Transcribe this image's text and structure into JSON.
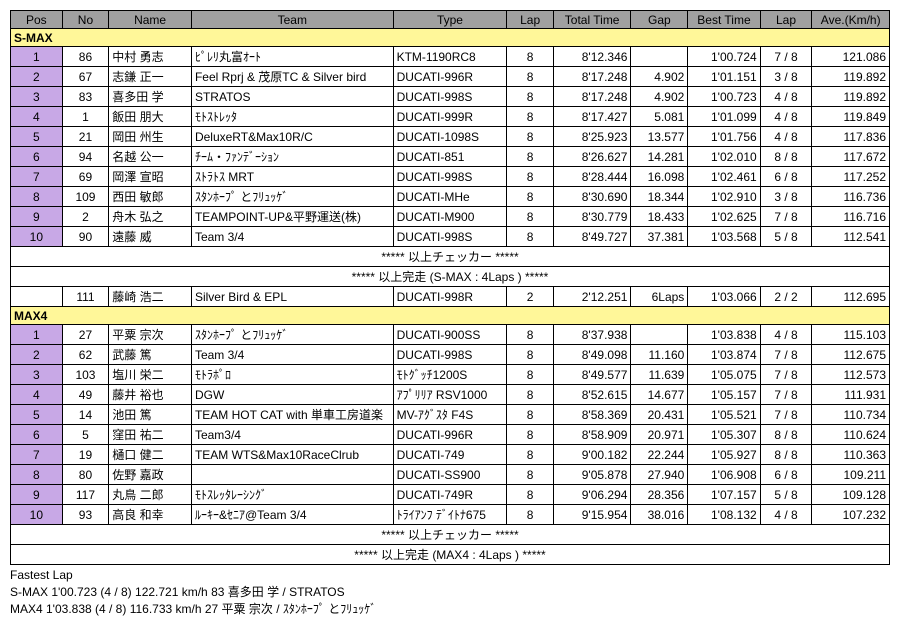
{
  "headers": [
    "Pos",
    "No",
    "Name",
    "Team",
    "Type",
    "Lap",
    "Total Time",
    "Gap",
    "Best Time",
    "Lap",
    "Ave.(Km/h)"
  ],
  "class1": {
    "label": "S-MAX",
    "rows": [
      {
        "pos": "1",
        "no": "86",
        "name": "中村 勇志",
        "team": "ﾋﾟﾚﾘ丸富ｵｰﾄ",
        "type": "KTM-1190RC8",
        "lap": "8",
        "tt": "8'12.346",
        "gap": "",
        "bt": "1'00.724",
        "blap": "7 / 8",
        "ave": "121.086"
      },
      {
        "pos": "2",
        "no": "67",
        "name": "志鎌 正一",
        "team": "Feel Rprj & 茂原TC & Silver bird",
        "type": "DUCATI-996R",
        "lap": "8",
        "tt": "8'17.248",
        "gap": "4.902",
        "bt": "1'01.151",
        "blap": "3 / 8",
        "ave": "119.892"
      },
      {
        "pos": "3",
        "no": "83",
        "name": "喜多田 学",
        "team": "STRATOS",
        "type": "DUCATI-998S",
        "lap": "8",
        "tt": "8'17.248",
        "gap": "4.902",
        "bt": "1'00.723",
        "blap": "4 / 8",
        "ave": "119.892"
      },
      {
        "pos": "4",
        "no": "1",
        "name": "飯田 朋大",
        "team": "ﾓﾄｽﾄﾚｯﾀ",
        "type": "DUCATI-999R",
        "lap": "8",
        "tt": "8'17.427",
        "gap": "5.081",
        "bt": "1'01.099",
        "blap": "4 / 8",
        "ave": "119.849"
      },
      {
        "pos": "5",
        "no": "21",
        "name": "岡田 州生",
        "team": "DeluxeRT&Max10R/C",
        "type": "DUCATI-1098S",
        "lap": "8",
        "tt": "8'25.923",
        "gap": "13.577",
        "bt": "1'01.756",
        "blap": "4 / 8",
        "ave": "117.836"
      },
      {
        "pos": "6",
        "no": "94",
        "name": "名越 公一",
        "team": "ﾁｰﾑ・ﾌｧﾝﾃﾞｰｼｮﾝ",
        "type": "DUCATI-851",
        "lap": "8",
        "tt": "8'26.627",
        "gap": "14.281",
        "bt": "1'02.010",
        "blap": "8 / 8",
        "ave": "117.672"
      },
      {
        "pos": "7",
        "no": "69",
        "name": "岡澤 宣昭",
        "team": "ｽﾄﾗﾄｽ MRT",
        "type": "DUCATI-998S",
        "lap": "8",
        "tt": "8'28.444",
        "gap": "16.098",
        "bt": "1'02.461",
        "blap": "6 / 8",
        "ave": "117.252"
      },
      {
        "pos": "8",
        "no": "109",
        "name": "西田 敏郎",
        "team": "ｽﾀﾝﾎｰﾌﾟ とﾌﾘｭｯｹﾞ",
        "type": "DUCATI-MHe",
        "lap": "8",
        "tt": "8'30.690",
        "gap": "18.344",
        "bt": "1'02.910",
        "blap": "3 / 8",
        "ave": "116.736"
      },
      {
        "pos": "9",
        "no": "2",
        "name": "舟木 弘之",
        "team": "TEAMPOINT-UP&平野運送(株)",
        "type": "DUCATI-M900",
        "lap": "8",
        "tt": "8'30.779",
        "gap": "18.433",
        "bt": "1'02.625",
        "blap": "7 / 8",
        "ave": "116.716"
      },
      {
        "pos": "10",
        "no": "90",
        "name": "遠藤 威",
        "team": "Team 3/4",
        "type": "DUCATI-998S",
        "lap": "8",
        "tt": "8'49.727",
        "gap": "37.381",
        "bt": "1'03.568",
        "blap": "5 / 8",
        "ave": "112.541"
      }
    ],
    "note1": "***** 以上チェッカー *****",
    "note2": "***** 以上完走 (S-MAX : 4Laps ) *****",
    "extra": {
      "pos": "",
      "no": "111",
      "name": "藤崎 浩二",
      "team": "Silver Bird & EPL",
      "type": "DUCATI-998R",
      "lap": "2",
      "tt": "2'12.251",
      "gap": "6Laps",
      "bt": "1'03.066",
      "blap": "2 / 2",
      "ave": "112.695"
    }
  },
  "class2": {
    "label": "MAX4",
    "rows": [
      {
        "pos": "1",
        "no": "27",
        "name": "平粟 宗次",
        "team": "ｽﾀﾝﾎｰﾌﾟ とﾌﾘｭｯｹﾞ",
        "type": "DUCATI-900SS",
        "lap": "8",
        "tt": "8'37.938",
        "gap": "",
        "bt": "1'03.838",
        "blap": "4 / 8",
        "ave": "115.103"
      },
      {
        "pos": "2",
        "no": "62",
        "name": "武藤 篤",
        "team": "Team 3/4",
        "type": "DUCATI-998S",
        "lap": "8",
        "tt": "8'49.098",
        "gap": "11.160",
        "bt": "1'03.874",
        "blap": "7 / 8",
        "ave": "112.675"
      },
      {
        "pos": "3",
        "no": "103",
        "name": "塩川 栄二",
        "team": "ﾓﾄﾗﾎﾟﾛ",
        "type": "ﾓﾄｸﾞｯﾁ1200S",
        "lap": "8",
        "tt": "8'49.577",
        "gap": "11.639",
        "bt": "1'05.075",
        "blap": "7 / 8",
        "ave": "112.573"
      },
      {
        "pos": "4",
        "no": "49",
        "name": "藤井 裕也",
        "team": "DGW",
        "type": "ｱﾌﾟﾘﾘｱ RSV1000",
        "lap": "8",
        "tt": "8'52.615",
        "gap": "14.677",
        "bt": "1'05.157",
        "blap": "7 / 8",
        "ave": "111.931"
      },
      {
        "pos": "5",
        "no": "14",
        "name": "池田 篤",
        "team": "TEAM HOT CAT with 単車工房道楽",
        "type": "MV-ｱｸﾞｽﾀ F4S",
        "lap": "8",
        "tt": "8'58.369",
        "gap": "20.431",
        "bt": "1'05.521",
        "blap": "7 / 8",
        "ave": "110.734"
      },
      {
        "pos": "6",
        "no": "5",
        "name": "窪田 祐二",
        "team": "Team3/4",
        "type": "DUCATI-996R",
        "lap": "8",
        "tt": "8'58.909",
        "gap": "20.971",
        "bt": "1'05.307",
        "blap": "8 / 8",
        "ave": "110.624"
      },
      {
        "pos": "7",
        "no": "19",
        "name": "樋口 健二",
        "team": "TEAM WTS&Max10RaceClrub",
        "type": "DUCATI-749",
        "lap": "8",
        "tt": "9'00.182",
        "gap": "22.244",
        "bt": "1'05.927",
        "blap": "8 / 8",
        "ave": "110.363"
      },
      {
        "pos": "8",
        "no": "80",
        "name": "佐野 嘉政",
        "team": "",
        "type": "DUCATI-SS900",
        "lap": "8",
        "tt": "9'05.878",
        "gap": "27.940",
        "bt": "1'06.908",
        "blap": "6 / 8",
        "ave": "109.211"
      },
      {
        "pos": "9",
        "no": "117",
        "name": "丸鳥 二郎",
        "team": "ﾓﾄｽﾚｯﾀﾚｰｼﾝｸﾞ",
        "type": "DUCATI-749R",
        "lap": "8",
        "tt": "9'06.294",
        "gap": "28.356",
        "bt": "1'07.157",
        "blap": "5 / 8",
        "ave": "109.128"
      },
      {
        "pos": "10",
        "no": "93",
        "name": "高良 和幸",
        "team": "ﾙｰｷｰ&ｾﾆｱ@Team 3/4",
        "type": "ﾄﾗｲｱﾝﾌ ﾃﾞｲﾄﾅ675",
        "lap": "8",
        "tt": "9'15.954",
        "gap": "38.016",
        "bt": "1'08.132",
        "blap": "4 / 8",
        "ave": "107.232"
      }
    ],
    "note1": "***** 以上チェッカー *****",
    "note2": "***** 以上完走 (MAX4 : 4Laps ) *****"
  },
  "fastest": {
    "title": "Fastest Lap",
    "line1": "S-MAX 1'00.723 (4 / 8) 122.721 km/h 83 喜多田 学 / STRATOS",
    "line2": "MAX4 1'03.838 (4 / 8) 116.733 km/h 27 平粟 宗次 / ｽﾀﾝﾎｰﾌﾟ とﾌﾘｭｯｹﾞ"
  }
}
